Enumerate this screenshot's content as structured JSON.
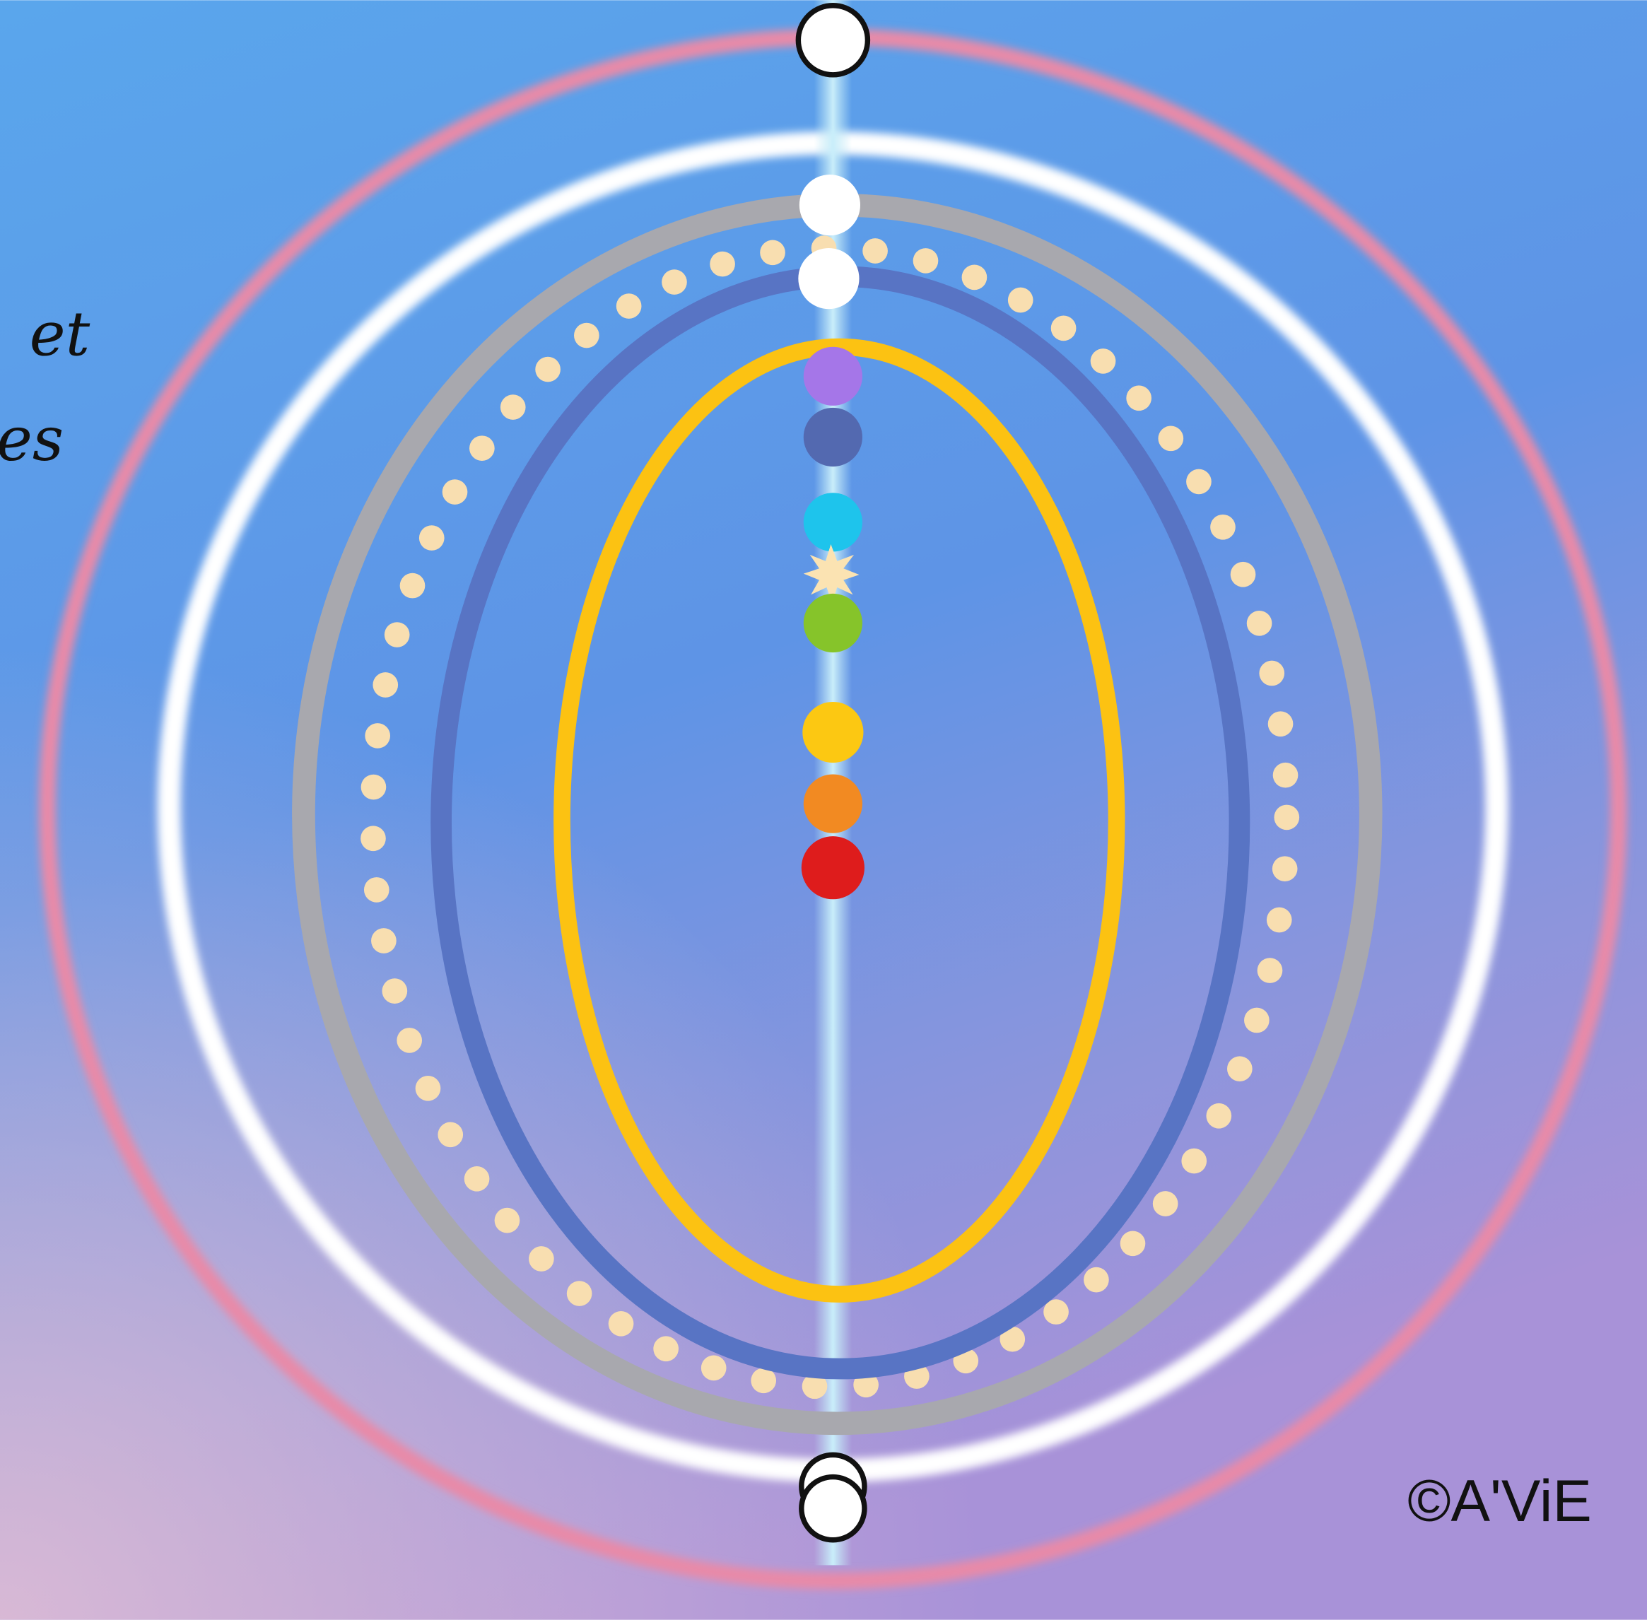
{
  "texts": {
    "line1": "et",
    "line2": "les",
    "copyright": "©A'ViE"
  }
}
